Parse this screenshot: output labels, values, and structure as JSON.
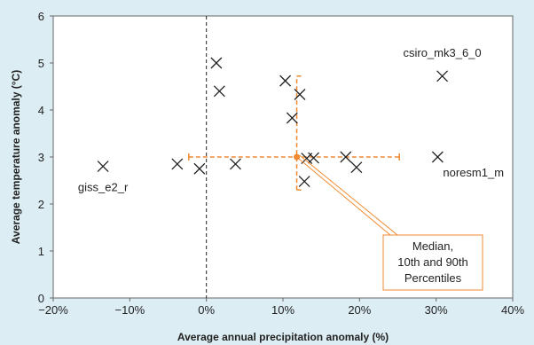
{
  "chart_data": {
    "type": "scatter",
    "xlabel": "Average annual precipitation anomaly (%)",
    "ylabel": "Average temperature anomaly (°C)",
    "xlim": [
      -20,
      40
    ],
    "ylim": [
      0,
      6
    ],
    "x_ticks": [
      -20,
      -10,
      0,
      10,
      20,
      30,
      40
    ],
    "x_tick_labels": [
      "−20%",
      "−10%",
      "0%",
      "10%",
      "20%",
      "30%",
      "40%"
    ],
    "y_ticks": [
      0,
      1,
      2,
      3,
      4,
      5,
      6
    ],
    "y_tick_labels": [
      "0",
      "1",
      "2",
      "3",
      "4",
      "5",
      "6"
    ],
    "grid": false,
    "zero_line": "vertical dashed at x = 0",
    "series": [
      {
        "marker": "x",
        "color": "#222222",
        "points": [
          {
            "x": -13.5,
            "y": 2.8,
            "label": "giss_e2_r"
          },
          {
            "x": -3.8,
            "y": 2.85
          },
          {
            "x": -0.9,
            "y": 2.75
          },
          {
            "x": 1.3,
            "y": 5.0
          },
          {
            "x": 1.7,
            "y": 4.4
          },
          {
            "x": 3.8,
            "y": 2.85
          },
          {
            "x": 10.3,
            "y": 4.62
          },
          {
            "x": 11.2,
            "y": 3.83
          },
          {
            "x": 12.2,
            "y": 4.33
          },
          {
            "x": 12.8,
            "y": 2.48
          },
          {
            "x": 13.1,
            "y": 2.97
          },
          {
            "x": 14.0,
            "y": 2.98
          },
          {
            "x": 18.2,
            "y": 3.0
          },
          {
            "x": 19.6,
            "y": 2.78
          },
          {
            "x": 30.2,
            "y": 3.0,
            "label": "noresm1_m"
          },
          {
            "x": 30.8,
            "y": 4.72,
            "label": "csiro_mk3_6_0"
          }
        ]
      }
    ],
    "median": {
      "x": 11.8,
      "y": 3.0,
      "x_range": [
        -2.3,
        25.2
      ],
      "y_range": [
        2.3,
        4.72
      ],
      "color": "#f08a30"
    },
    "annotation": {
      "lines": [
        "Median,",
        "10th and 90th",
        "Percentiles"
      ],
      "color": "#f08a30"
    }
  }
}
